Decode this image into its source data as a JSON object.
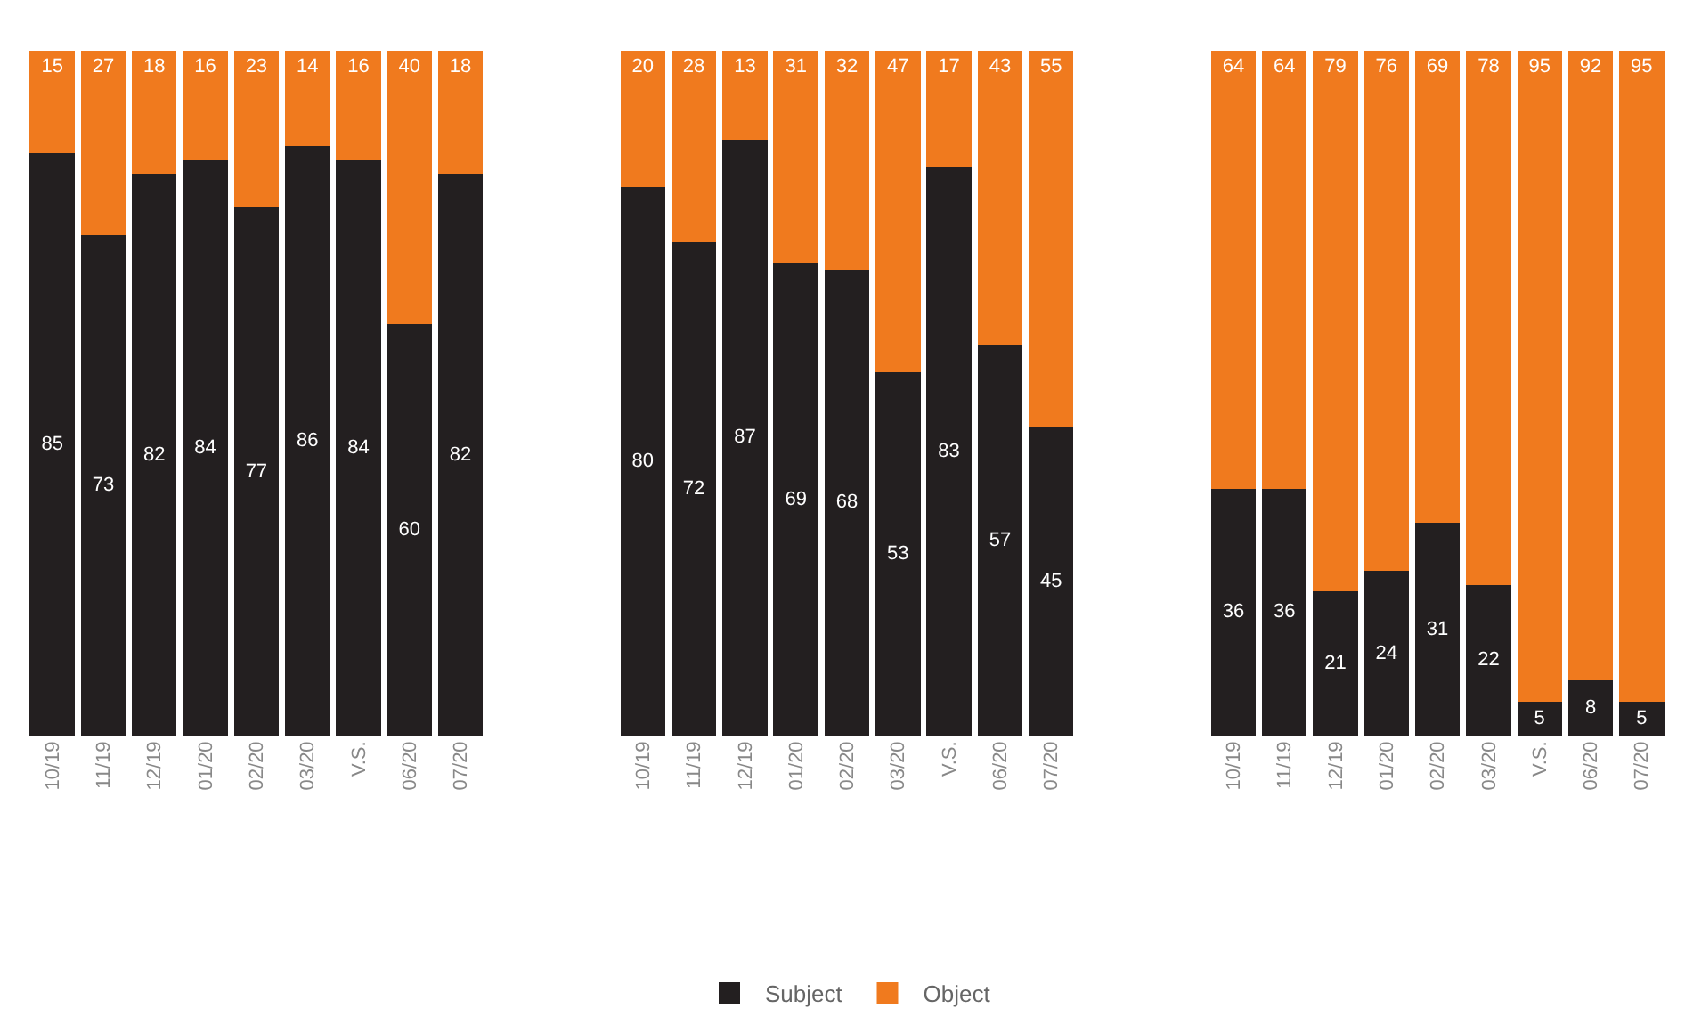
{
  "chart_data": [
    {
      "type": "bar",
      "stacked": true,
      "data_labels": true,
      "legend": "bottom",
      "tick_labels": "x",
      "categories": [
        "10/19",
        "11/19",
        "12/19",
        "01/20",
        "02/20",
        "03/20",
        "V.S.",
        "06/20",
        "07/20"
      ],
      "series": [
        {
          "name": "Subject",
          "color": "#231f20",
          "values": [
            85,
            73,
            82,
            84,
            77,
            86,
            84,
            60,
            82
          ]
        },
        {
          "name": "Object",
          "color": "#f07a1e",
          "values": [
            15,
            27,
            18,
            16,
            23,
            14,
            16,
            40,
            18
          ]
        }
      ]
    },
    {
      "type": "bar",
      "stacked": true,
      "data_labels": true,
      "legend": "bottom",
      "tick_labels": "x",
      "categories": [
        "10/19",
        "11/19",
        "12/19",
        "01/20",
        "02/20",
        "03/20",
        "V.S.",
        "06/20",
        "07/20"
      ],
      "series": [
        {
          "name": "Subject",
          "color": "#231f20",
          "values": [
            80,
            72,
            87,
            69,
            68,
            53,
            83,
            57,
            45
          ]
        },
        {
          "name": "Object",
          "color": "#f07a1e",
          "values": [
            20,
            28,
            13,
            31,
            32,
            47,
            17,
            43,
            55
          ]
        }
      ]
    },
    {
      "type": "bar",
      "stacked": true,
      "data_labels": true,
      "legend": "bottom",
      "tick_labels": "x",
      "categories": [
        "10/19",
        "11/19",
        "12/19",
        "01/20",
        "02/20",
        "03/20",
        "V.S.",
        "06/20",
        "07/20"
      ],
      "series": [
        {
          "name": "Subject",
          "color": "#231f20",
          "values": [
            36,
            36,
            21,
            24,
            31,
            22,
            5,
            8,
            5
          ]
        },
        {
          "name": "Object",
          "color": "#f07a1e",
          "values": [
            64,
            64,
            79,
            76,
            69,
            78,
            95,
            92,
            95
          ]
        }
      ]
    }
  ]
}
